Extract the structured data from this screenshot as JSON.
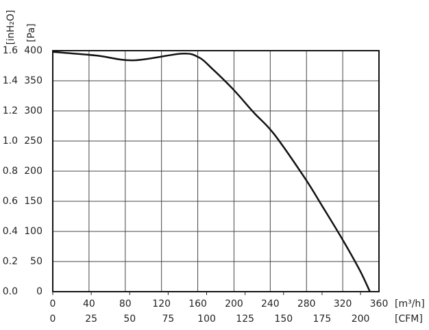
{
  "chart_data": {
    "type": "line",
    "x_label": "[m³/h]",
    "x2_label": "[CFM]",
    "y_label": "[Pa]",
    "y2_label": "[inH₂O]",
    "x": [
      0,
      47.6,
      89,
      142,
      161,
      176,
      199,
      222,
      244,
      278,
      297,
      320,
      339,
      350
    ],
    "series": [
      {
        "name": "Pa",
        "color": "#111111",
        "values": [
          398,
          392,
          384,
          395,
          389,
          370,
          336,
          297,
          262,
          189,
          143,
          86,
          35,
          0
        ]
      }
    ],
    "xlim": [
      0,
      360
    ],
    "xticks": [
      0,
      40,
      80,
      120,
      160,
      200,
      240,
      280,
      320,
      360
    ],
    "x2lim": [
      0,
      212
    ],
    "x2ticks": [
      0,
      25,
      50,
      75,
      100,
      125,
      150,
      175,
      200
    ],
    "ylim": [
      0,
      400
    ],
    "yticks": [
      0,
      50,
      100,
      150,
      200,
      250,
      300,
      350,
      400
    ],
    "y2lim": [
      0,
      1.6
    ],
    "y2ticks": [
      {
        "value": 0,
        "label": "0.0"
      },
      0.2,
      0.4,
      0.6,
      0.8,
      {
        "value": 1,
        "label": "1.0"
      },
      1.2,
      1.4,
      1.6
    ],
    "grid": true
  }
}
